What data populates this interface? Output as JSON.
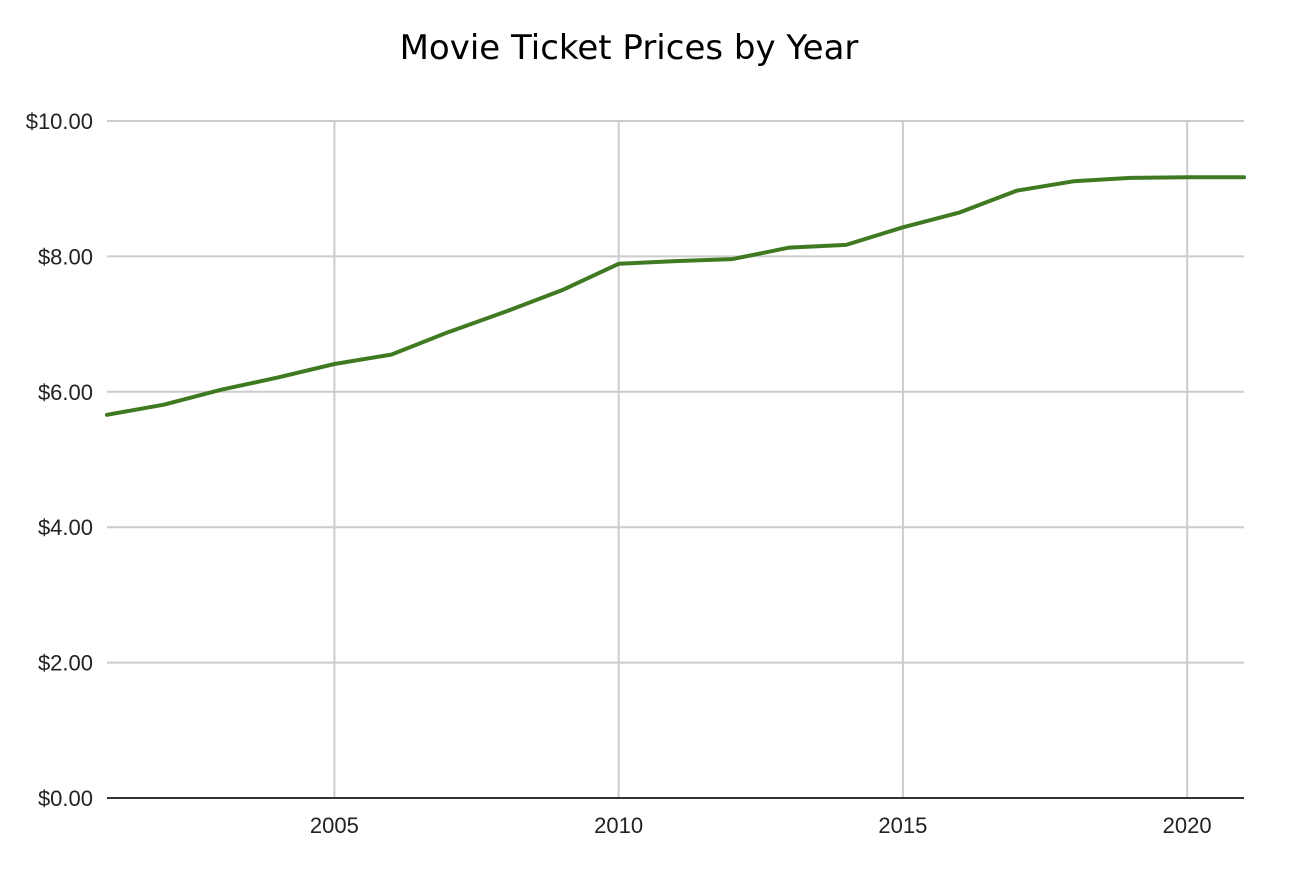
{
  "chart_data": {
    "type": "line",
    "title": "Movie Ticket Prices by Year",
    "xlabel": "",
    "ylabel": "",
    "x": [
      2001,
      2002,
      2003,
      2004,
      2005,
      2006,
      2007,
      2008,
      2009,
      2010,
      2011,
      2012,
      2013,
      2014,
      2015,
      2016,
      2017,
      2018,
      2019,
      2020,
      2021
    ],
    "series": [
      {
        "name": "",
        "color": "#3f7a22",
        "values": [
          5.66,
          5.81,
          6.03,
          6.21,
          6.41,
          6.55,
          6.88,
          7.18,
          7.5,
          7.89,
          7.93,
          7.96,
          8.13,
          8.17,
          8.43,
          8.65,
          8.97,
          9.11,
          9.16,
          9.17,
          9.17
        ]
      }
    ],
    "xlim": [
      2001,
      2021
    ],
    "ylim": [
      0,
      10
    ],
    "x_ticks": [
      2005,
      2010,
      2015,
      2020
    ],
    "x_tick_labels": [
      "2005",
      "2010",
      "2015",
      "2020"
    ],
    "y_ticks": [
      0,
      2,
      4,
      6,
      8,
      10
    ],
    "y_tick_labels": [
      "$0.00",
      "$2.00",
      "$4.00",
      "$6.00",
      "$8.00",
      "$10.00"
    ],
    "grid": true,
    "legend": "none"
  }
}
